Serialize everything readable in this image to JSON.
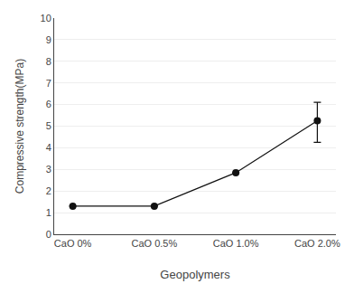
{
  "chart_data": {
    "type": "line",
    "xlabel": "Geopolymers",
    "ylabel": "Compressive strength(MPa)",
    "categories": [
      "CaO 0%",
      "CaO 0.5%",
      "CaO 1.0%",
      "CaO 2.0%"
    ],
    "series": [
      {
        "color": "#111111",
        "marker": "circle",
        "values": [
          1.3,
          1.3,
          2.85,
          5.25
        ],
        "yerr_lower": [
          0,
          0,
          0,
          1.0
        ],
        "yerr_upper": [
          0,
          0,
          0,
          0.85
        ]
      }
    ],
    "ylim": [
      0,
      10
    ],
    "yticks": [
      0,
      1,
      2,
      3,
      4,
      5,
      6,
      7,
      8,
      9,
      10
    ],
    "grid": true
  }
}
